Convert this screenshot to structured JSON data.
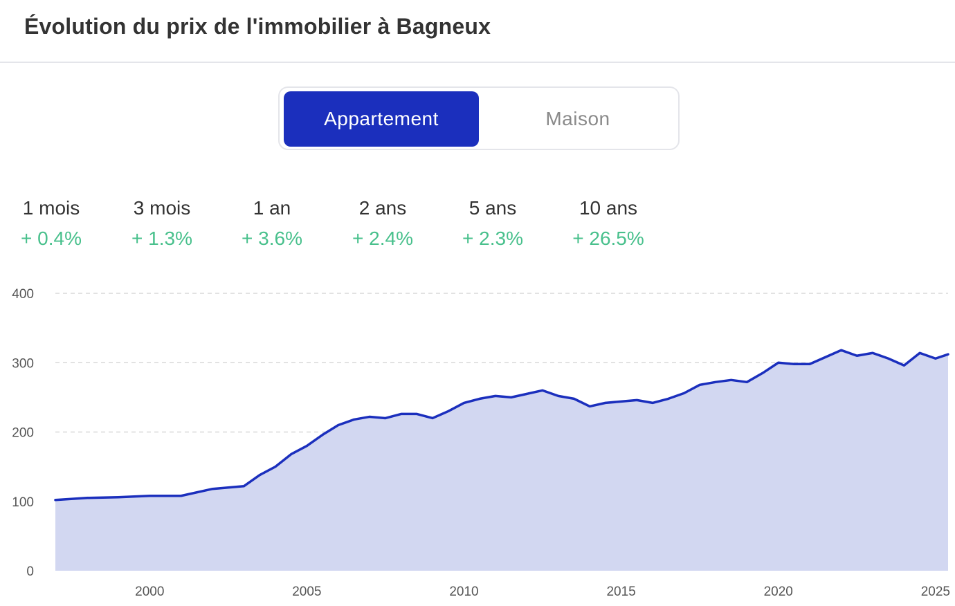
{
  "header": {
    "title": "Évolution du prix de l'immobilier à Bagneux"
  },
  "toggle": {
    "options": [
      {
        "label": "Appartement",
        "active": true
      },
      {
        "label": "Maison",
        "active": false
      }
    ]
  },
  "periods": [
    {
      "label": "1 mois",
      "value": "+ 0.4%"
    },
    {
      "label": "3 mois",
      "value": "+ 1.3%"
    },
    {
      "label": "1 an",
      "value": "+ 3.6%"
    },
    {
      "label": "2 ans",
      "value": "+ 2.4%"
    },
    {
      "label": "5 ans",
      "value": "+ 2.3%"
    },
    {
      "label": "10 ans",
      "value": "+ 26.5%"
    }
  ],
  "colors": {
    "accent": "#1b2fbd",
    "positive": "#48c08c",
    "area_fill": "#d2d7f1",
    "line": "#1b2fbd",
    "grid": "#d8d8d8"
  },
  "chart_data": {
    "type": "area",
    "title": "",
    "xlabel": "",
    "ylabel": "",
    "xlim": [
      1997,
      2025.4
    ],
    "ylim": [
      0,
      400
    ],
    "yticks": [
      0,
      100,
      200,
      300,
      400
    ],
    "xticks": [
      2000,
      2005,
      2010,
      2015,
      2020,
      2025
    ],
    "grid": true,
    "series": [
      {
        "x": [
          1997.0,
          1998.0,
          1999.0,
          2000.0,
          2001.0,
          2002.0,
          2003.0,
          2003.5,
          2004.0,
          2004.5,
          2005.0,
          2005.5,
          2006.0,
          2006.5,
          2007.0,
          2007.5,
          2008.0,
          2008.5,
          2009.0,
          2009.5,
          2010.0,
          2010.5,
          2011.0,
          2011.5,
          2012.0,
          2012.5,
          2013.0,
          2013.5,
          2014.0,
          2014.5,
          2015.0,
          2015.5,
          2016.0,
          2016.5,
          2017.0,
          2017.5,
          2018.0,
          2018.5,
          2019.0,
          2019.5,
          2020.0,
          2020.5,
          2021.0,
          2021.5,
          2022.0,
          2022.5,
          2023.0,
          2023.5,
          2024.0,
          2024.5,
          2025.0,
          2025.4
        ],
        "y": [
          102,
          105,
          106,
          108,
          108,
          118,
          122,
          138,
          150,
          168,
          180,
          196,
          210,
          218,
          222,
          220,
          226,
          226,
          220,
          230,
          242,
          248,
          252,
          250,
          255,
          260,
          252,
          248,
          237,
          242,
          244,
          246,
          242,
          248,
          256,
          268,
          272,
          275,
          272,
          285,
          300,
          298,
          298,
          308,
          318,
          310,
          314,
          306,
          296,
          314,
          306,
          312
        ]
      }
    ]
  }
}
